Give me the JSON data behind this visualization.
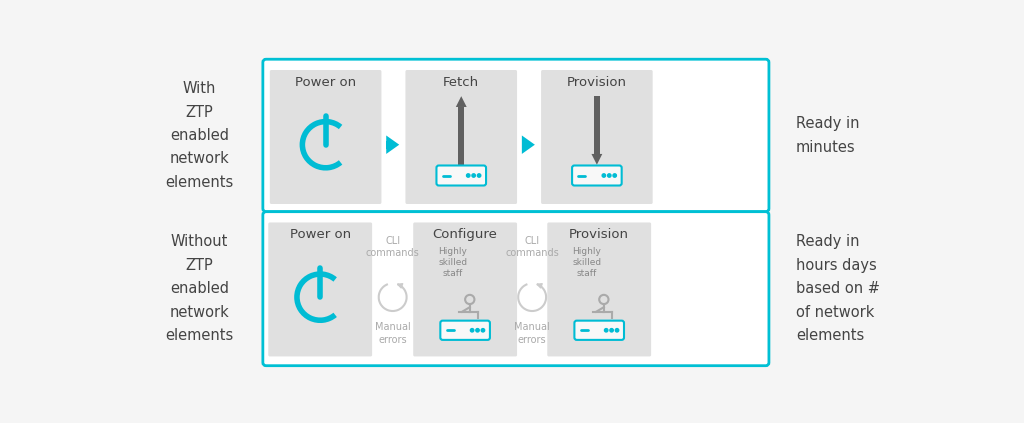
{
  "bg_color": "#f5f5f5",
  "box_border_color": "#00c0d4",
  "card_bg_color": "#e0e0e0",
  "arrow_cyan_color": "#00bcd4",
  "arrow_gray_color": "#606060",
  "power_color": "#00bcd4",
  "device_color": "#00bcd4",
  "device_bg": "#f8f8f8",
  "text_dark": "#444444",
  "text_gray": "#888888",
  "text_light": "#aaaaaa",
  "person_color": "#aaaaaa",
  "row1_label": "With\nZTP\nenabled\nnetwork\nelements",
  "row2_label": "Without\nZTP\nenabled\nnetwork\nelements",
  "row1_ready": "Ready in\nminutes",
  "row2_ready": "Ready in\nhours days\nbased on #\nof network\nelements",
  "row1_steps": [
    "Power on",
    "Fetch",
    "Provision"
  ],
  "row2_steps": [
    "Power on",
    "Configure",
    "Provision"
  ],
  "cli_text": "CLI\ncommands",
  "manual_text": "Manual\nerrors",
  "skilled_text": "Highly\nskilled\nstaff"
}
